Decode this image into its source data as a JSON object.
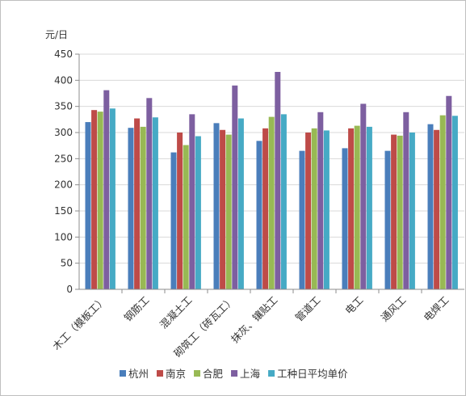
{
  "chart_data": {
    "type": "bar",
    "unit_label": "元/日",
    "ylim": [
      0,
      450
    ],
    "yticks": [
      0,
      50,
      100,
      150,
      200,
      250,
      300,
      350,
      400,
      450
    ],
    "grid": "horizontal",
    "legend_position": "bottom",
    "categories": [
      "木工（模板工）",
      "钢筋工",
      "混凝土工",
      "砌筑工（砖瓦工）",
      "抹灰、镶贴工",
      "管道工",
      "电工",
      "通风工",
      "电焊工"
    ],
    "series": [
      {
        "name": "杭州",
        "color": "#4a7ebb",
        "values": [
          320,
          309,
          262,
          318,
          284,
          265,
          270,
          265,
          316
        ]
      },
      {
        "name": "南京",
        "color": "#be4b48",
        "values": [
          343,
          327,
          300,
          305,
          308,
          300,
          308,
          296,
          305
        ]
      },
      {
        "name": "合肥",
        "color": "#98b954",
        "values": [
          340,
          311,
          276,
          296,
          330,
          308,
          313,
          294,
          333
        ]
      },
      {
        "name": "上海",
        "color": "#7d5fa0",
        "values": [
          381,
          366,
          335,
          390,
          416,
          339,
          355,
          339,
          370
        ]
      },
      {
        "name": "工种日平均单价",
        "color": "#46aac5",
        "values": [
          346,
          329,
          293,
          327,
          335,
          304,
          311,
          300,
          332
        ]
      }
    ]
  }
}
